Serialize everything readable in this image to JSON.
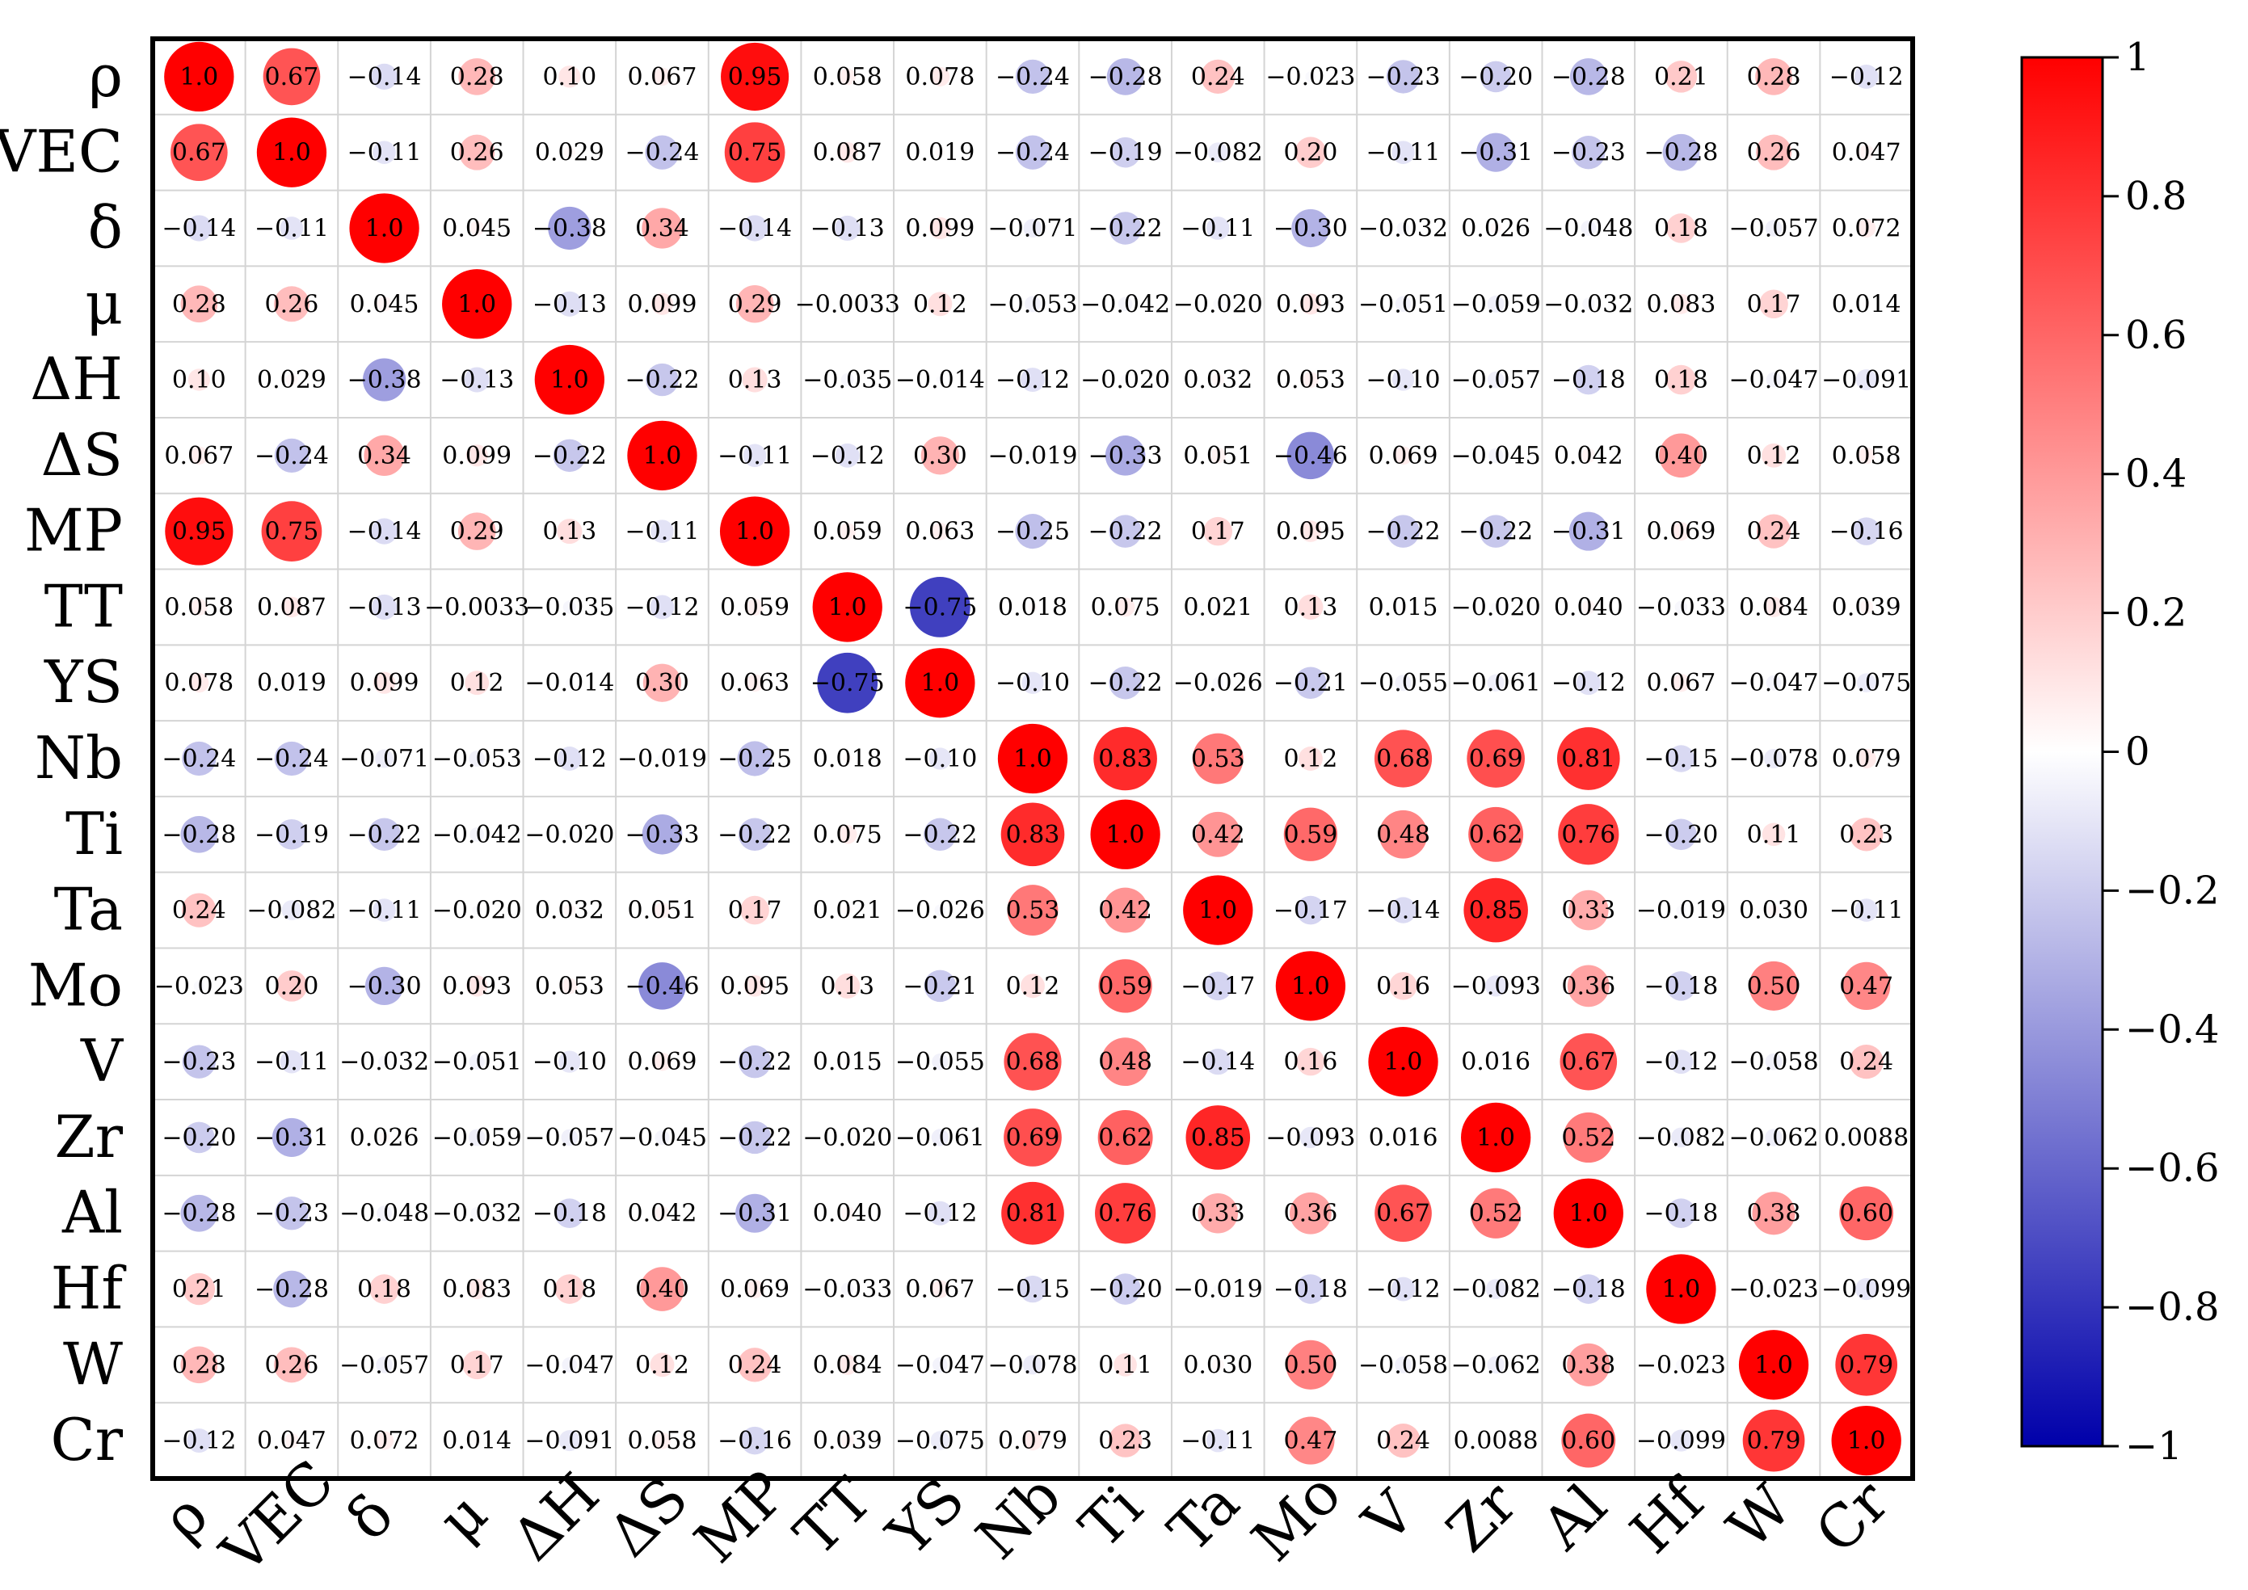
{
  "chart_data": {
    "type": "heatmap",
    "title": "",
    "xlabel": "",
    "ylabel": "",
    "colorbar_range": [
      -1,
      1
    ],
    "colorbar_ticks": [
      "1",
      "0.8",
      "0.6",
      "0.4",
      "0.2",
      "0",
      "−0.2",
      "−0.4",
      "−0.6",
      "−0.8",
      "−1"
    ],
    "color_scale": {
      "negative": "#0000aa",
      "zero": "#ffffff",
      "positive": "#ff0000"
    },
    "grid": true,
    "categories": [
      "ρ",
      "VEC",
      "δ",
      "μ",
      "ΔH",
      "ΔS",
      "MP",
      "TT",
      "YS",
      "Nb",
      "Ti",
      "Ta",
      "Mo",
      "V",
      "Zr",
      "Al",
      "Hf",
      "W",
      "Cr"
    ],
    "matrix": [
      [
        1.0,
        0.67,
        -0.14,
        0.28,
        0.1,
        0.067,
        0.95,
        0.058,
        0.078,
        -0.24,
        -0.28,
        0.24,
        -0.023,
        -0.23,
        -0.2,
        -0.28,
        0.21,
        0.28,
        -0.12
      ],
      [
        0.67,
        1.0,
        -0.11,
        0.26,
        0.029,
        -0.24,
        0.75,
        0.087,
        0.019,
        -0.24,
        -0.19,
        -0.082,
        0.2,
        -0.11,
        -0.31,
        -0.23,
        -0.28,
        0.26,
        0.047
      ],
      [
        -0.14,
        -0.11,
        1.0,
        0.045,
        -0.38,
        0.34,
        -0.14,
        -0.13,
        0.099,
        -0.071,
        -0.22,
        -0.11,
        -0.3,
        -0.032,
        0.026,
        -0.048,
        0.18,
        -0.057,
        0.072
      ],
      [
        0.28,
        0.26,
        0.045,
        1.0,
        -0.13,
        0.099,
        0.29,
        -0.0033,
        0.12,
        -0.053,
        -0.042,
        -0.02,
        0.093,
        -0.051,
        -0.059,
        -0.032,
        0.083,
        0.17,
        0.014
      ],
      [
        0.1,
        0.029,
        -0.38,
        -0.13,
        1.0,
        -0.22,
        0.13,
        -0.035,
        -0.014,
        -0.12,
        -0.02,
        0.032,
        0.053,
        -0.1,
        -0.057,
        -0.18,
        0.18,
        -0.047,
        -0.091
      ],
      [
        0.067,
        -0.24,
        0.34,
        0.099,
        -0.22,
        1.0,
        -0.11,
        -0.12,
        0.3,
        -0.019,
        -0.33,
        0.051,
        -0.46,
        0.069,
        -0.045,
        0.042,
        0.4,
        0.12,
        0.058
      ],
      [
        0.95,
        0.75,
        -0.14,
        0.29,
        0.13,
        -0.11,
        1.0,
        0.059,
        0.063,
        -0.25,
        -0.22,
        0.17,
        0.095,
        -0.22,
        -0.22,
        -0.31,
        0.069,
        0.24,
        -0.16
      ],
      [
        0.058,
        0.087,
        -0.13,
        -0.0033,
        -0.035,
        -0.12,
        0.059,
        1.0,
        -0.75,
        0.018,
        0.075,
        0.021,
        0.13,
        0.015,
        -0.02,
        0.04,
        -0.033,
        0.084,
        0.039
      ],
      [
        0.078,
        0.019,
        0.099,
        0.12,
        -0.014,
        0.3,
        0.063,
        -0.75,
        1.0,
        -0.1,
        -0.22,
        -0.026,
        -0.21,
        -0.055,
        -0.061,
        -0.12,
        0.067,
        -0.047,
        -0.075
      ],
      [
        -0.24,
        -0.24,
        -0.071,
        -0.053,
        -0.12,
        -0.019,
        -0.25,
        0.018,
        -0.1,
        1.0,
        0.83,
        0.53,
        0.12,
        0.68,
        0.69,
        0.81,
        -0.15,
        -0.078,
        0.079
      ],
      [
        -0.28,
        -0.19,
        -0.22,
        -0.042,
        -0.02,
        -0.33,
        -0.22,
        0.075,
        -0.22,
        0.83,
        1.0,
        0.42,
        0.59,
        0.48,
        0.62,
        0.76,
        -0.2,
        0.11,
        0.23
      ],
      [
        0.24,
        -0.082,
        -0.11,
        -0.02,
        0.032,
        0.051,
        0.17,
        0.021,
        -0.026,
        0.53,
        0.42,
        1.0,
        -0.17,
        -0.14,
        0.85,
        0.33,
        -0.019,
        0.03,
        -0.11
      ],
      [
        -0.023,
        0.2,
        -0.3,
        0.093,
        0.053,
        -0.46,
        0.095,
        0.13,
        -0.21,
        0.12,
        0.59,
        -0.17,
        1.0,
        0.16,
        -0.093,
        0.36,
        -0.18,
        0.5,
        0.47
      ],
      [
        -0.23,
        -0.11,
        -0.032,
        -0.051,
        -0.1,
        0.069,
        -0.22,
        0.015,
        -0.055,
        0.68,
        0.48,
        -0.14,
        0.16,
        1.0,
        0.016,
        0.67,
        -0.12,
        -0.058,
        0.24
      ],
      [
        -0.2,
        -0.31,
        0.026,
        -0.059,
        -0.057,
        -0.045,
        -0.22,
        -0.02,
        -0.061,
        0.69,
        0.62,
        0.85,
        -0.093,
        0.016,
        1.0,
        0.52,
        -0.082,
        -0.062,
        0.0088
      ],
      [
        -0.28,
        -0.23,
        -0.048,
        -0.032,
        -0.18,
        0.042,
        -0.31,
        0.04,
        -0.12,
        0.81,
        0.76,
        0.33,
        0.36,
        0.67,
        0.52,
        1.0,
        -0.18,
        0.38,
        0.6
      ],
      [
        0.21,
        -0.28,
        0.18,
        0.083,
        0.18,
        0.4,
        0.069,
        -0.033,
        0.067,
        -0.15,
        -0.2,
        -0.019,
        -0.18,
        -0.12,
        -0.082,
        -0.18,
        1.0,
        -0.023,
        -0.099
      ],
      [
        0.28,
        0.26,
        -0.057,
        0.17,
        -0.047,
        0.12,
        0.24,
        0.084,
        -0.047,
        -0.078,
        0.11,
        0.03,
        0.5,
        -0.058,
        -0.062,
        0.38,
        -0.023,
        1.0,
        0.79
      ],
      [
        -0.12,
        0.047,
        0.072,
        0.014,
        -0.091,
        0.058,
        -0.16,
        0.039,
        -0.075,
        0.079,
        0.23,
        -0.11,
        0.47,
        0.24,
        0.0088,
        0.6,
        -0.099,
        0.79,
        1.0
      ]
    ],
    "labels": [
      [
        "1.0",
        "0.67",
        "−0.14",
        "0.28",
        "0.10",
        "0.067",
        "0.95",
        "0.058",
        "0.078",
        "−0.24",
        "−0.28",
        "0.24",
        "−0.023",
        "−0.23",
        "−0.20",
        "−0.28",
        "0.21",
        "0.28",
        "−0.12"
      ],
      [
        "0.67",
        "1.0",
        "−0.11",
        "0.26",
        "0.029",
        "−0.24",
        "0.75",
        "0.087",
        "0.019",
        "−0.24",
        "−0.19",
        "−0.082",
        "0.20",
        "−0.11",
        "−0.31",
        "−0.23",
        "−0.28",
        "0.26",
        "0.047"
      ],
      [
        "−0.14",
        "−0.11",
        "1.0",
        "0.045",
        "−0.38",
        "0.34",
        "−0.14",
        "−0.13",
        "0.099",
        "−0.071",
        "−0.22",
        "−0.11",
        "−0.30",
        "−0.032",
        "0.026",
        "−0.048",
        "0.18",
        "−0.057",
        "0.072"
      ],
      [
        "0.28",
        "0.26",
        "0.045",
        "1.0",
        "−0.13",
        "0.099",
        "0.29",
        "−0.0033",
        "0.12",
        "−0.053",
        "−0.042",
        "−0.020",
        "0.093",
        "−0.051",
        "−0.059",
        "−0.032",
        "0.083",
        "0.17",
        "0.014"
      ],
      [
        "0.10",
        "0.029",
        "−0.38",
        "−0.13",
        "1.0",
        "−0.22",
        "0.13",
        "−0.035",
        "−0.014",
        "−0.12",
        "−0.020",
        "0.032",
        "0.053",
        "−0.10",
        "−0.057",
        "−0.18",
        "0.18",
        "−0.047",
        "−0.091"
      ],
      [
        "0.067",
        "−0.24",
        "0.34",
        "0.099",
        "−0.22",
        "1.0",
        "−0.11",
        "−0.12",
        "0.30",
        "−0.019",
        "−0.33",
        "0.051",
        "−0.46",
        "0.069",
        "−0.045",
        "0.042",
        "0.40",
        "0.12",
        "0.058"
      ],
      [
        "0.95",
        "0.75",
        "−0.14",
        "0.29",
        "0.13",
        "−0.11",
        "1.0",
        "0.059",
        "0.063",
        "−0.25",
        "−0.22",
        "0.17",
        "0.095",
        "−0.22",
        "−0.22",
        "−0.31",
        "0.069",
        "0.24",
        "−0.16"
      ],
      [
        "0.058",
        "0.087",
        "−0.13",
        "−0.0033",
        "−0.035",
        "−0.12",
        "0.059",
        "1.0",
        "−0.75",
        "0.018",
        "0.075",
        "0.021",
        "0.13",
        "0.015",
        "−0.020",
        "0.040",
        "−0.033",
        "0.084",
        "0.039"
      ],
      [
        "0.078",
        "0.019",
        "0.099",
        "0.12",
        "−0.014",
        "0.30",
        "0.063",
        "−0.75",
        "1.0",
        "−0.10",
        "−0.22",
        "−0.026",
        "−0.21",
        "−0.055",
        "−0.061",
        "−0.12",
        "0.067",
        "−0.047",
        "−0.075"
      ],
      [
        "−0.24",
        "−0.24",
        "−0.071",
        "−0.053",
        "−0.12",
        "−0.019",
        "−0.25",
        "0.018",
        "−0.10",
        "1.0",
        "0.83",
        "0.53",
        "0.12",
        "0.68",
        "0.69",
        "0.81",
        "−0.15",
        "−0.078",
        "0.079"
      ],
      [
        "−0.28",
        "−0.19",
        "−0.22",
        "−0.042",
        "−0.020",
        "−0.33",
        "−0.22",
        "0.075",
        "−0.22",
        "0.83",
        "1.0",
        "0.42",
        "0.59",
        "0.48",
        "0.62",
        "0.76",
        "−0.20",
        "0.11",
        "0.23"
      ],
      [
        "0.24",
        "−0.082",
        "−0.11",
        "−0.020",
        "0.032",
        "0.051",
        "0.17",
        "0.021",
        "−0.026",
        "0.53",
        "0.42",
        "1.0",
        "−0.17",
        "−0.14",
        "0.85",
        "0.33",
        "−0.019",
        "0.030",
        "−0.11"
      ],
      [
        "−0.023",
        "0.20",
        "−0.30",
        "0.093",
        "0.053",
        "−0.46",
        "0.095",
        "0.13",
        "−0.21",
        "0.12",
        "0.59",
        "−0.17",
        "1.0",
        "0.16",
        "−0.093",
        "0.36",
        "−0.18",
        "0.50",
        "0.47"
      ],
      [
        "−0.23",
        "−0.11",
        "−0.032",
        "−0.051",
        "−0.10",
        "0.069",
        "−0.22",
        "0.015",
        "−0.055",
        "0.68",
        "0.48",
        "−0.14",
        "0.16",
        "1.0",
        "0.016",
        "0.67",
        "−0.12",
        "−0.058",
        "0.24"
      ],
      [
        "−0.20",
        "−0.31",
        "0.026",
        "−0.059",
        "−0.057",
        "−0.045",
        "−0.22",
        "−0.020",
        "−0.061",
        "0.69",
        "0.62",
        "0.85",
        "−0.093",
        "0.016",
        "1.0",
        "0.52",
        "−0.082",
        "−0.062",
        "0.0088"
      ],
      [
        "−0.28",
        "−0.23",
        "−0.048",
        "−0.032",
        "−0.18",
        "0.042",
        "−0.31",
        "0.040",
        "−0.12",
        "0.81",
        "0.76",
        "0.33",
        "0.36",
        "0.67",
        "0.52",
        "1.0",
        "−0.18",
        "0.38",
        "0.60"
      ],
      [
        "0.21",
        "−0.28",
        "0.18",
        "0.083",
        "0.18",
        "0.40",
        "0.069",
        "−0.033",
        "0.067",
        "−0.15",
        "−0.20",
        "−0.019",
        "−0.18",
        "−0.12",
        "−0.082",
        "−0.18",
        "1.0",
        "−0.023",
        "−0.099"
      ],
      [
        "0.28",
        "0.26",
        "−0.057",
        "0.17",
        "−0.047",
        "0.12",
        "0.24",
        "0.084",
        "−0.047",
        "−0.078",
        "0.11",
        "0.030",
        "0.50",
        "−0.058",
        "−0.062",
        "0.38",
        "−0.023",
        "1.0",
        "0.79"
      ],
      [
        "−0.12",
        "0.047",
        "0.072",
        "0.014",
        "−0.091",
        "0.058",
        "−0.16",
        "0.039",
        "−0.075",
        "0.079",
        "0.23",
        "−0.11",
        "0.47",
        "0.24",
        "0.0088",
        "0.60",
        "−0.099",
        "0.79",
        "1.0"
      ]
    ]
  }
}
